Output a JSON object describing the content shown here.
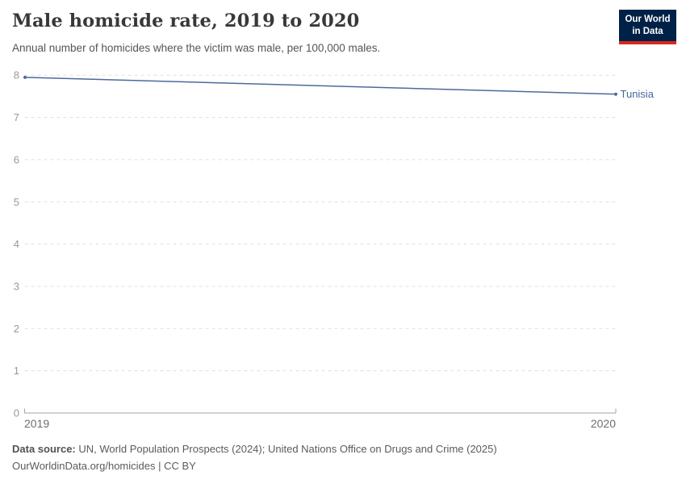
{
  "header": {
    "title": "Male homicide rate, 2019 to 2020",
    "subtitle": "Annual number of homicides where the victim was male, per 100,000 males."
  },
  "logo": {
    "line1": "Our World",
    "line2": "in Data",
    "bg_color": "#002147",
    "accent_color": "#d4291f"
  },
  "chart_data": {
    "type": "line",
    "title": "Male homicide rate, 2019 to 2020",
    "x": [
      2019,
      2020
    ],
    "series": [
      {
        "name": "Tunisia",
        "values": [
          7.95,
          7.55
        ],
        "color": "#4c6a9c",
        "label_color": "#3d6a9f"
      }
    ],
    "xlabel": "",
    "ylabel": "",
    "ylim": [
      0,
      8
    ],
    "yticks": [
      0,
      1,
      2,
      3,
      4,
      5,
      6,
      7,
      8
    ],
    "ytick_labels": [
      "0",
      "1",
      "2",
      "3",
      "4",
      "5",
      "6",
      "7",
      "8"
    ],
    "xtick_labels": [
      "2019",
      "2020"
    ],
    "grid": "horizontal-dashed",
    "legend_position": "end-of-line"
  },
  "footer": {
    "source_label": "Data source:",
    "source_text": "UN, World Population Prospects (2024); United Nations Office on Drugs and Crime (2025)",
    "note": "OurWorldinData.org/homicides | CC BY"
  }
}
